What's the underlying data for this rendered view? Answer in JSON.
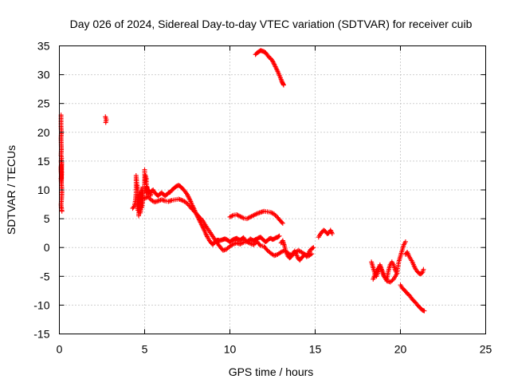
{
  "chart_data": {
    "type": "scatter",
    "title": "Day 026 of 2024, Sidereal Day-to-day VTEC variation (SDTVAR) for receiver cuib",
    "xlabel": "GPS time / hours",
    "ylabel": "SDTVAR / TECUs",
    "xlim": [
      0,
      25
    ],
    "ylim": [
      -15,
      35
    ],
    "xticks": [
      "0",
      "5",
      "10",
      "15",
      "20",
      "25"
    ],
    "yticks": [
      "-15",
      "-10",
      "-5",
      "0",
      "5",
      "10",
      "15",
      "20",
      "25",
      "30",
      "35"
    ],
    "grid": true,
    "marker": "+",
    "color": "#ff0000",
    "series": [
      {
        "name": "SDTVAR",
        "segments": [
          {
            "x": [
              0.1,
              0.1,
              0.12,
              0.1,
              0.11,
              0.12,
              0.1,
              0.13,
              0.1,
              0.12,
              0.1,
              0.11,
              0.13,
              0.12,
              0.1,
              0.11,
              0.12,
              0.15,
              0.14,
              0.12,
              0.1,
              0.11,
              0.13,
              0.14,
              0.15,
              0.12,
              0.1,
              0.11,
              0.14,
              0.12
            ],
            "y": [
              23,
              21,
              20,
              19,
              18,
              17,
              16,
              15.5,
              15,
              14.5,
              14,
              13.5,
              13,
              12.5,
              12,
              11.5,
              11,
              10,
              9,
              8,
              7.5,
              7,
              6.8,
              6.5,
              6.3,
              12,
              14,
              13,
              15,
              11
            ]
          },
          {
            "x": [
              2.7,
              2.75,
              2.72
            ],
            "y": [
              22.7,
              22.2,
              21.7
            ]
          },
          {
            "x": [
              4.3,
              4.4,
              4.45,
              4.5,
              4.5,
              4.55,
              4.6,
              4.6,
              4.6,
              4.7,
              4.7,
              4.65,
              4.8,
              4.8,
              4.75,
              4.9,
              4.9,
              4.85,
              5.0,
              5.0,
              5.05,
              5.1,
              5.1,
              5.15,
              5.2,
              5.25,
              5.3,
              5.35,
              5.4,
              5.5,
              5.6,
              5.7,
              5.8,
              5.9,
              6.0,
              6.1,
              6.2,
              6.3,
              6.4,
              6.5,
              6.6,
              6.7,
              6.8,
              6.9,
              7.0,
              7.1,
              7.2,
              7.3,
              7.4,
              7.5,
              7.6,
              7.7,
              7.8,
              7.9,
              8.0,
              8.1,
              8.2,
              8.3,
              8.4,
              8.5,
              8.6,
              8.7,
              8.8,
              8.9,
              9.0,
              9.1,
              9.2,
              9.3,
              9.4,
              9.5,
              9.6,
              9.7,
              9.8,
              9.9,
              10.0,
              10.1,
              10.2,
              10.3,
              10.4,
              10.5,
              10.6,
              10.7,
              10.8,
              10.9,
              11.0,
              11.1,
              11.2,
              11.3,
              11.4,
              11.5,
              11.6,
              11.7,
              11.8,
              11.9,
              12.0,
              12.1,
              12.2,
              12.3,
              12.4,
              12.5,
              12.6,
              12.7,
              12.8,
              12.9
            ],
            "y": [
              6.8,
              7.2,
              8,
              9.5,
              12.5,
              11,
              10,
              9,
              6.5,
              9.5,
              7.5,
              5.5,
              10,
              8.5,
              6,
              10.5,
              8.5,
              7,
              13.5,
              11,
              12.5,
              12,
              9.5,
              10.5,
              9,
              10,
              9.5,
              9,
              9.8,
              10,
              9.5,
              9.2,
              9,
              9.3,
              9.5,
              9.2,
              9,
              9.2,
              9.5,
              9.6,
              10,
              10.2,
              10.5,
              10.7,
              10.8,
              10.6,
              10.3,
              10,
              9.6,
              9.2,
              8.6,
              8,
              7.3,
              6.7,
              6,
              5.4,
              4.8,
              4.2,
              3.6,
              3,
              2.3,
              1.7,
              1.2,
              0.8,
              0.5,
              0.9,
              1.2,
              1.3,
              1.2,
              1.3,
              1.4,
              1.5,
              1.4,
              1.2,
              1,
              1.2,
              1.4,
              1.5,
              1.6,
              1.4,
              1.3,
              1.5,
              1.7,
              1.3,
              1,
              1.2,
              1.5,
              1.3,
              1.2,
              1.4,
              1.5,
              1.7,
              1.8,
              1.5,
              1.2,
              1,
              1.2,
              1.5,
              1.6,
              1.4,
              1.5,
              1.7,
              1.8,
              2
            ]
          },
          {
            "x": [
              5.0,
              5.2,
              5.4,
              5.6,
              5.8,
              6.0,
              6.2,
              6.4,
              6.6,
              6.8,
              7.0,
              7.2,
              7.4,
              7.6,
              7.8,
              8.0,
              8.2,
              8.4,
              8.6,
              8.8,
              9.0,
              9.2,
              9.4,
              9.6,
              9.8,
              10.0,
              10.2,
              10.4,
              10.6,
              10.8,
              11.0,
              11.2,
              11.4,
              11.6,
              11.8,
              12.0,
              12.2,
              12.4,
              12.6,
              12.8,
              13.0,
              13.2,
              13.4,
              13.6,
              13.8,
              14.0,
              14.2,
              14.4,
              14.6,
              14.8
            ],
            "y": [
              8.5,
              8.8,
              8.2,
              7.9,
              8.1,
              8.3,
              8.1,
              8.0,
              8.2,
              8.3,
              8.4,
              8.2,
              7.9,
              7.3,
              6.6,
              6.0,
              5.3,
              4.7,
              3.7,
              2.8,
              1.9,
              1.0,
              0.2,
              -0.5,
              -0.3,
              0.2,
              0.6,
              0.8,
              0.6,
              0.9,
              1.0,
              0.7,
              0.5,
              1.0,
              0.3,
              0.2,
              -0.5,
              -1.0,
              -1.4,
              -1.2,
              -0.8,
              -0.5,
              -1.0,
              -1.3,
              -1.0,
              -0.5,
              -0.8,
              -1.2,
              -1.5,
              -1.1
            ]
          },
          {
            "x": [
              10.0,
              10.2,
              10.4,
              10.6,
              10.8,
              11.0,
              11.2,
              11.4,
              11.6,
              11.8,
              12.0,
              12.2,
              12.4,
              12.6,
              12.8,
              13.0,
              13.1
            ],
            "y": [
              5.3,
              5.6,
              5.7,
              5.4,
              5.1,
              5.0,
              5.3,
              5.6,
              5.9,
              6.1,
              6.3,
              6.2,
              6.1,
              5.8,
              5.2,
              4.5,
              4.2
            ]
          },
          {
            "x": [
              11.5,
              11.6,
              11.7,
              11.8,
              11.9,
              12.0,
              12.1,
              12.2,
              12.3,
              12.4,
              12.5,
              12.6,
              12.7,
              12.8,
              12.9,
              13.0,
              13.05,
              13.1,
              13.15
            ],
            "y": [
              33.5,
              33.8,
              34.0,
              34.2,
              34.1,
              34.0,
              33.8,
              33.4,
              33.0,
              32.8,
              32.4,
              31.8,
              31.2,
              30.6,
              29.9,
              29.2,
              28.8,
              28.5,
              28.2
            ]
          },
          {
            "x": [
              13.0,
              13.1,
              13.2,
              13.3,
              13.4,
              13.5,
              13.6,
              13.7,
              13.8,
              13.9,
              14.0,
              14.1,
              14.2,
              14.3,
              14.4,
              14.5,
              14.6,
              14.7,
              14.8,
              14.9
            ],
            "y": [
              0.8,
              1.2,
              0.3,
              -0.8,
              -1.5,
              -1.8,
              -1.6,
              -1.0,
              -0.6,
              -1.2,
              -1.9,
              -2.2,
              -1.8,
              -1.5,
              -1.2,
              -1.6,
              -1.0,
              -0.5,
              -0.2,
              0.0
            ]
          },
          {
            "x": [
              15.2,
              15.3,
              15.4,
              15.5,
              15.6,
              15.7,
              15.8,
              15.9,
              16.0
            ],
            "y": [
              1.8,
              2.3,
              2.7,
              3.0,
              2.8,
              2.4,
              2.5,
              3.0,
              2.4
            ]
          },
          {
            "x": [
              18.3,
              18.4,
              18.5,
              18.6,
              18.7,
              18.8,
              18.9,
              19.0,
              19.1,
              19.2,
              19.3,
              19.4,
              19.5,
              19.6,
              19.7,
              19.8,
              19.9,
              20.0,
              20.1,
              20.2,
              20.3
            ],
            "y": [
              -2.5,
              -3.5,
              -4.5,
              -5.0,
              -4.2,
              -3.0,
              -3.8,
              -4.5,
              -5.2,
              -5.5,
              -4.0,
              -3.0,
              -2.5,
              -3.0,
              -4.0,
              -4.5,
              -2.5,
              -1.5,
              -0.5,
              0.5,
              1.0
            ]
          },
          {
            "x": [
              18.4,
              18.6,
              18.8,
              19.0,
              19.2,
              19.4,
              19.6,
              19.8
            ],
            "y": [
              -5.5,
              -4.0,
              -3.2,
              -4.8,
              -5.8,
              -6.0,
              -5.5,
              -4.5
            ]
          },
          {
            "x": [
              20.3,
              20.4,
              20.5,
              20.6,
              20.7,
              20.8,
              20.9,
              21.0,
              21.1,
              21.2,
              21.3,
              21.35
            ],
            "y": [
              -1.2,
              -0.8,
              -1.5,
              -2.0,
              -2.5,
              -3.2,
              -3.8,
              -4.2,
              -4.5,
              -4.6,
              -4.3,
              -3.8
            ]
          },
          {
            "x": [
              20.0,
              20.1,
              20.2,
              20.3,
              20.4,
              20.5,
              20.6,
              20.7,
              20.8,
              20.9,
              21.0,
              21.1,
              21.2,
              21.3,
              21.4
            ],
            "y": [
              -6.5,
              -7.0,
              -7.3,
              -7.6,
              -8.0,
              -8.2,
              -8.6,
              -9.0,
              -9.3,
              -9.6,
              -10.0,
              -10.3,
              -10.6,
              -10.9,
              -11.0
            ]
          }
        ]
      }
    ]
  }
}
